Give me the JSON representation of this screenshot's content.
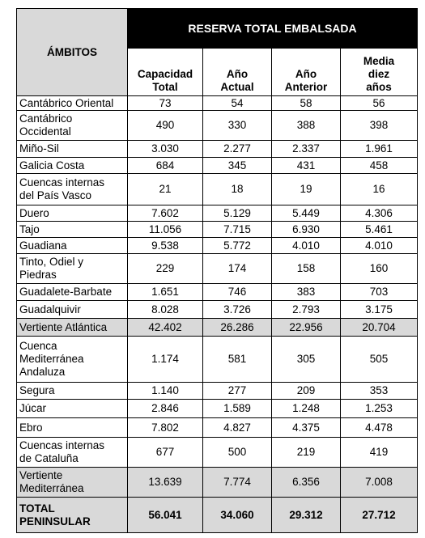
{
  "table": {
    "header": {
      "ambitos": "ÁMBITOS",
      "group": "RESERVA TOTAL EMBALSADA",
      "columns": [
        "Capacidad\nTotal",
        "Año\nActual",
        "Año\nAnterior",
        "Media\ndiez\naños"
      ]
    },
    "rows": [
      [
        "Cantábrico Oriental",
        "73",
        "54",
        "58",
        "56"
      ],
      [
        "Cantábrico\nOccidental",
        "490",
        "330",
        "388",
        "398"
      ],
      [
        "Miño-Sil",
        "3.030",
        "2.277",
        "2.337",
        "1.961"
      ],
      [
        "Galicia Costa",
        "684",
        "345",
        "431",
        "458"
      ],
      [
        "Cuencas internas\ndel País Vasco",
        "21",
        "18",
        "19",
        "16"
      ],
      [
        "Duero",
        "7.602",
        "5.129",
        "5.449",
        "4.306"
      ],
      [
        "Tajo",
        "11.056",
        "7.715",
        "6.930",
        "5.461"
      ],
      [
        "Guadiana",
        "9.538",
        "5.772",
        "4.010",
        "4.010"
      ],
      [
        "Tinto, Odiel y\nPiedras",
        "229",
        "174",
        "158",
        "160"
      ],
      [
        "Guadalete-Barbate",
        "1.651",
        "746",
        "383",
        "703"
      ],
      [
        "Guadalquivir",
        "8.028",
        "3.726",
        "2.793",
        "3.175"
      ],
      [
        "Vertiente Atlántica",
        "42.402",
        "26.286",
        "22.956",
        "20.704"
      ],
      [
        "Cuenca\nMediterránea\nAndaluza",
        "1.174",
        "581",
        "305",
        "505"
      ],
      [
        "Segura",
        "1.140",
        "277",
        "209",
        "353"
      ],
      [
        "Júcar",
        "2.846",
        "1.589",
        "1.248",
        "1.253"
      ],
      [
        "Ebro",
        "7.802",
        "4.827",
        "4.375",
        "4.478"
      ],
      [
        "Cuencas internas\nde Cataluña",
        "677",
        "500",
        "219",
        "419"
      ],
      [
        "Vertiente\nMediterránea",
        "13.639",
        "7.774",
        "6.356",
        "7.008"
      ],
      [
        "TOTAL\nPENINSULAR",
        "56.041",
        "34.060",
        "29.312",
        "27.712"
      ]
    ]
  }
}
